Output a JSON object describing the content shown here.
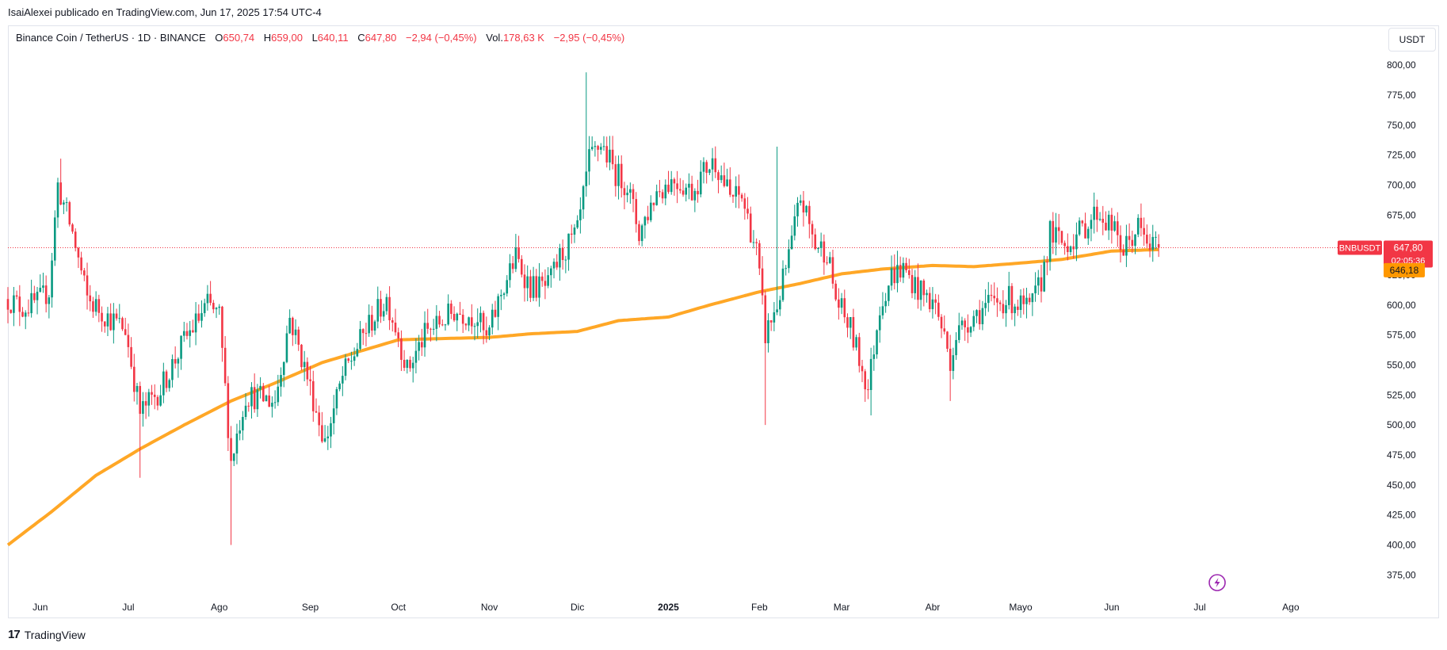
{
  "publisher": "IsaiAlexei publicado en TradingView.com, Jun 17, 2025 17:54 UTC-4",
  "legend": {
    "symbol": "Binance Coin / TetherUS · 1D · BINANCE",
    "open_label": "O",
    "open": "650,74",
    "high_label": "H",
    "high": "659,00",
    "low_label": "L",
    "low": "640,11",
    "close_label": "C",
    "close": "647,80",
    "change": "−2,94 (−0,45%)",
    "vol_label": "Vol.",
    "vol": "178,63 K",
    "vol_change": "−2,95 (−0,45%)"
  },
  "currency_button": "USDT",
  "price_tag": {
    "symbol": "BNBUSDT",
    "price": "647,80",
    "countdown": "02:05:36",
    "color": "#f23645"
  },
  "ma_tag": {
    "price": "646,18",
    "color": "#ff9800"
  },
  "brand": {
    "logo": "17",
    "name": "TradingView"
  },
  "alert_icon": "lightning-icon",
  "colors": {
    "up": "#089981",
    "down": "#f23645",
    "ma": "#ffa726",
    "grid": "#e0e3eb"
  },
  "chart_data": {
    "type": "candlestick",
    "title": "Binance Coin / TetherUS · 1D · BINANCE",
    "y_ticks": [
      800,
      775,
      750,
      725,
      700,
      675,
      650,
      625,
      600,
      575,
      550,
      525,
      500,
      475,
      450,
      425,
      400,
      375
    ],
    "y_tick_labels": [
      "800,00",
      "775,00",
      "750,00",
      "725,00",
      "700,00",
      "675,00",
      "650,00",
      "625,00",
      "600,00",
      "575,00",
      "550,00",
      "525,00",
      "500,00",
      "475,00",
      "450,00",
      "425,00",
      "400,00",
      "375,00"
    ],
    "ylim": [
      362,
      808
    ],
    "x_ticks": [
      "Jun",
      "Jul",
      "Ago",
      "Sep",
      "Oct",
      "Nov",
      "Dic",
      "2025",
      "Feb",
      "Mar",
      "Abr",
      "Mayo",
      "Jun",
      "Jul",
      "Ago"
    ],
    "x_tick_dates": [
      "2024-06-01",
      "2024-07-01",
      "2024-08-01",
      "2024-09-01",
      "2024-10-01",
      "2024-11-01",
      "2024-12-01",
      "2025-01-01",
      "2025-02-01",
      "2025-03-01",
      "2025-04-01",
      "2025-05-01",
      "2025-06-01",
      "2025-07-01",
      "2025-08-01"
    ],
    "xlim": [
      "2024-05-21",
      "2025-08-31"
    ],
    "last_date": "2025-06-17",
    "price_anchors": [
      [
        "2024-05-21",
        605
      ],
      [
        "2024-05-26",
        598
      ],
      [
        "2024-05-31",
        602
      ],
      [
        "2024-06-04",
        612
      ],
      [
        "2024-06-07",
        700
      ],
      [
        "2024-06-12",
        660
      ],
      [
        "2024-06-17",
        605
      ],
      [
        "2024-06-24",
        590
      ],
      [
        "2024-06-30",
        580
      ],
      [
        "2024-07-05",
        510
      ],
      [
        "2024-07-12",
        530
      ],
      [
        "2024-07-20",
        570
      ],
      [
        "2024-07-28",
        600
      ],
      [
        "2024-08-01",
        590
      ],
      [
        "2024-08-05",
        470
      ],
      [
        "2024-08-10",
        525
      ],
      [
        "2024-08-20",
        520
      ],
      [
        "2024-08-25",
        590
      ],
      [
        "2024-08-31",
        540
      ],
      [
        "2024-09-06",
        485
      ],
      [
        "2024-09-12",
        540
      ],
      [
        "2024-09-20",
        580
      ],
      [
        "2024-09-27",
        605
      ],
      [
        "2024-10-01",
        575
      ],
      [
        "2024-10-04",
        545
      ],
      [
        "2024-10-10",
        575
      ],
      [
        "2024-10-20",
        595
      ],
      [
        "2024-10-28",
        590
      ],
      [
        "2024-10-31",
        570
      ],
      [
        "2024-11-05",
        610
      ],
      [
        "2024-11-10",
        640
      ],
      [
        "2024-11-15",
        615
      ],
      [
        "2024-11-21",
        615
      ],
      [
        "2024-11-25",
        640
      ],
      [
        "2024-12-01",
        660
      ],
      [
        "2024-12-05",
        720
      ],
      [
        "2024-12-09",
        735
      ],
      [
        "2024-12-14",
        710
      ],
      [
        "2024-12-18",
        700
      ],
      [
        "2024-12-22",
        660
      ],
      [
        "2024-12-28",
        695
      ],
      [
        "2025-01-03",
        705
      ],
      [
        "2025-01-09",
        695
      ],
      [
        "2025-01-14",
        715
      ],
      [
        "2025-01-17",
        720
      ],
      [
        "2025-01-22",
        690
      ],
      [
        "2025-01-26",
        690
      ],
      [
        "2025-01-31",
        645
      ],
      [
        "2025-02-03",
        575
      ],
      [
        "2025-02-07",
        600
      ],
      [
        "2025-02-11",
        640
      ],
      [
        "2025-02-15",
        690
      ],
      [
        "2025-02-20",
        650
      ],
      [
        "2025-02-24",
        645
      ],
      [
        "2025-02-27",
        605
      ],
      [
        "2025-03-04",
        580
      ],
      [
        "2025-03-10",
        530
      ],
      [
        "2025-03-14",
        600
      ],
      [
        "2025-03-18",
        625
      ],
      [
        "2025-03-22",
        630
      ],
      [
        "2025-03-28",
        610
      ],
      [
        "2025-04-02",
        600
      ],
      [
        "2025-04-07",
        555
      ],
      [
        "2025-04-09",
        575
      ],
      [
        "2025-04-14",
        590
      ],
      [
        "2025-04-20",
        600
      ],
      [
        "2025-04-27",
        605
      ],
      [
        "2025-05-04",
        595
      ],
      [
        "2025-05-08",
        620
      ],
      [
        "2025-05-11",
        660
      ],
      [
        "2025-05-16",
        650
      ],
      [
        "2025-05-21",
        660
      ],
      [
        "2025-05-27",
        678
      ],
      [
        "2025-06-01",
        665
      ],
      [
        "2025-06-05",
        645
      ],
      [
        "2025-06-10",
        665
      ],
      [
        "2025-06-13",
        650
      ],
      [
        "2025-06-17",
        648
      ]
    ],
    "ma_anchors": [
      [
        "2024-05-21",
        400
      ],
      [
        "2024-06-05",
        428
      ],
      [
        "2024-06-20",
        458
      ],
      [
        "2024-07-05",
        480
      ],
      [
        "2024-07-20",
        500
      ],
      [
        "2024-08-05",
        520
      ],
      [
        "2024-08-20",
        535
      ],
      [
        "2024-09-05",
        552
      ],
      [
        "2024-09-20",
        563
      ],
      [
        "2024-10-01",
        571
      ],
      [
        "2024-10-15",
        572
      ],
      [
        "2024-11-01",
        573
      ],
      [
        "2024-11-15",
        576
      ],
      [
        "2024-12-01",
        578
      ],
      [
        "2024-12-15",
        587
      ],
      [
        "2025-01-01",
        590
      ],
      [
        "2025-01-15",
        600
      ],
      [
        "2025-02-01",
        611
      ],
      [
        "2025-02-15",
        618
      ],
      [
        "2025-03-01",
        626
      ],
      [
        "2025-03-15",
        630
      ],
      [
        "2025-04-01",
        633
      ],
      [
        "2025-04-15",
        632
      ],
      [
        "2025-05-01",
        635
      ],
      [
        "2025-05-15",
        638
      ],
      [
        "2025-06-01",
        645
      ],
      [
        "2025-06-17",
        646.2
      ]
    ],
    "spikes": [
      [
        "2024-06-08",
        722,
        "high"
      ],
      [
        "2024-07-05",
        456,
        "low"
      ],
      [
        "2024-08-05",
        400,
        "low"
      ],
      [
        "2024-12-04",
        794,
        "high"
      ],
      [
        "2025-02-03",
        500,
        "low"
      ],
      [
        "2025-02-07",
        732,
        "high"
      ],
      [
        "2025-03-11",
        508,
        "low"
      ],
      [
        "2025-04-07",
        520,
        "low"
      ]
    ],
    "moving_average_last": 646.18,
    "last_close": 647.8
  }
}
